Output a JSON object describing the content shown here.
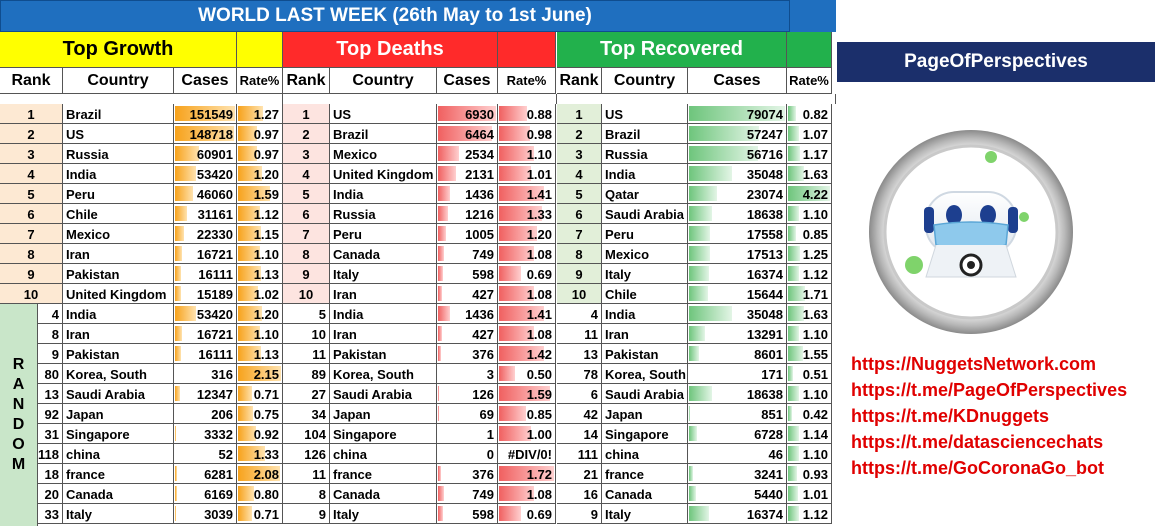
{
  "title": "WORLD LAST WEEK (26th May to 1st June)",
  "brand": "PageOfPerspectives",
  "links": [
    "https://NuggetsNetwork.com",
    "https://t.me/PageOfPerspectives",
    "https://t.me/KDnuggets",
    "https://t.me/datasciencechats",
    "https://t.me/GoCoronaGo_bot"
  ],
  "random_label": [
    "R",
    "A",
    "N",
    "D",
    "O",
    "M"
  ],
  "colors": {
    "growth": "#ffff00",
    "deaths": "#ff2a2a",
    "recovered": "#22b14c",
    "title": "#1f6fbf",
    "banner": "#1b2f6b"
  },
  "sections": [
    {
      "key": "growth",
      "title": "Top Growth",
      "headers": [
        "Rank",
        "Country",
        "Cases",
        "Rate%"
      ],
      "top": [
        {
          "rank": "1",
          "country": "Brazil",
          "cases": "151549",
          "rate": "1.27"
        },
        {
          "rank": "2",
          "country": "US",
          "cases": "148718",
          "rate": "0.97"
        },
        {
          "rank": "3",
          "country": "Russia",
          "cases": "60901",
          "rate": "0.97"
        },
        {
          "rank": "4",
          "country": "India",
          "cases": "53420",
          "rate": "1.20"
        },
        {
          "rank": "5",
          "country": "Peru",
          "cases": "46060",
          "rate": "1.59"
        },
        {
          "rank": "6",
          "country": "Chile",
          "cases": "31161",
          "rate": "1.12"
        },
        {
          "rank": "7",
          "country": "Mexico",
          "cases": "22330",
          "rate": "1.15"
        },
        {
          "rank": "8",
          "country": "Iran",
          "cases": "16721",
          "rate": "1.10"
        },
        {
          "rank": "9",
          "country": "Pakistan",
          "cases": "16111",
          "rate": "1.13"
        },
        {
          "rank": "10",
          "country": "United Kingdom",
          "cases": "15189",
          "rate": "1.02"
        }
      ],
      "random": [
        {
          "rank": "4",
          "country": "India",
          "cases": "53420",
          "rate": "1.20"
        },
        {
          "rank": "8",
          "country": "Iran",
          "cases": "16721",
          "rate": "1.10"
        },
        {
          "rank": "9",
          "country": "Pakistan",
          "cases": "16111",
          "rate": "1.13"
        },
        {
          "rank": "80",
          "country": "Korea, South",
          "cases": "316",
          "rate": "2.15"
        },
        {
          "rank": "13",
          "country": "Saudi Arabia",
          "cases": "12347",
          "rate": "0.71"
        },
        {
          "rank": "92",
          "country": "Japan",
          "cases": "206",
          "rate": "0.75"
        },
        {
          "rank": "31",
          "country": "Singapore",
          "cases": "3332",
          "rate": "0.92"
        },
        {
          "rank": "118",
          "country": "china",
          "cases": "52",
          "rate": "1.33"
        },
        {
          "rank": "18",
          "country": "france",
          "cases": "6281",
          "rate": "2.08"
        },
        {
          "rank": "20",
          "country": "Canada",
          "cases": "6169",
          "rate": "0.80"
        },
        {
          "rank": "33",
          "country": "Italy",
          "cases": "3039",
          "rate": "0.71"
        }
      ]
    },
    {
      "key": "deaths",
      "title": "Top Deaths",
      "headers": [
        "Rank",
        "Country",
        "Cases",
        "Rate%"
      ],
      "top": [
        {
          "rank": "1",
          "country": "US",
          "cases": "6930",
          "rate": "0.88"
        },
        {
          "rank": "2",
          "country": "Brazil",
          "cases": "6464",
          "rate": "0.98"
        },
        {
          "rank": "3",
          "country": "Mexico",
          "cases": "2534",
          "rate": "1.10"
        },
        {
          "rank": "4",
          "country": "United Kingdom",
          "cases": "2131",
          "rate": "1.01"
        },
        {
          "rank": "5",
          "country": "India",
          "cases": "1436",
          "rate": "1.41"
        },
        {
          "rank": "6",
          "country": "Russia",
          "cases": "1216",
          "rate": "1.33"
        },
        {
          "rank": "7",
          "country": "Peru",
          "cases": "1005",
          "rate": "1.20"
        },
        {
          "rank": "8",
          "country": "Canada",
          "cases": "749",
          "rate": "1.08"
        },
        {
          "rank": "9",
          "country": "Italy",
          "cases": "598",
          "rate": "0.69"
        },
        {
          "rank": "10",
          "country": "Iran",
          "cases": "427",
          "rate": "1.08"
        }
      ],
      "random": [
        {
          "rank": "5",
          "country": "India",
          "cases": "1436",
          "rate": "1.41"
        },
        {
          "rank": "10",
          "country": "Iran",
          "cases": "427",
          "rate": "1.08"
        },
        {
          "rank": "11",
          "country": "Pakistan",
          "cases": "376",
          "rate": "1.42"
        },
        {
          "rank": "89",
          "country": "Korea, South",
          "cases": "3",
          "rate": "0.50"
        },
        {
          "rank": "27",
          "country": "Saudi Arabia",
          "cases": "126",
          "rate": "1.59"
        },
        {
          "rank": "34",
          "country": "Japan",
          "cases": "69",
          "rate": "0.85"
        },
        {
          "rank": "104",
          "country": "Singapore",
          "cases": "1",
          "rate": "1.00"
        },
        {
          "rank": "126",
          "country": "china",
          "cases": "0",
          "rate": "#DIV/0!"
        },
        {
          "rank": "11",
          "country": "france",
          "cases": "376",
          "rate": "1.72"
        },
        {
          "rank": "8",
          "country": "Canada",
          "cases": "749",
          "rate": "1.08"
        },
        {
          "rank": "9",
          "country": "Italy",
          "cases": "598",
          "rate": "0.69"
        }
      ]
    },
    {
      "key": "recovered",
      "title": "Top Recovered",
      "headers": [
        "Rank",
        "Country",
        "Cases",
        "Rate%"
      ],
      "top": [
        {
          "rank": "1",
          "country": "US",
          "cases": "79074",
          "rate": "0.82"
        },
        {
          "rank": "2",
          "country": "Brazil",
          "cases": "57247",
          "rate": "1.07"
        },
        {
          "rank": "3",
          "country": "Russia",
          "cases": "56716",
          "rate": "1.17"
        },
        {
          "rank": "4",
          "country": "India",
          "cases": "35048",
          "rate": "1.63"
        },
        {
          "rank": "5",
          "country": "Qatar",
          "cases": "23074",
          "rate": "4.22"
        },
        {
          "rank": "6",
          "country": "Saudi Arabia",
          "cases": "18638",
          "rate": "1.10"
        },
        {
          "rank": "7",
          "country": "Peru",
          "cases": "17558",
          "rate": "0.85"
        },
        {
          "rank": "8",
          "country": "Mexico",
          "cases": "17513",
          "rate": "1.25"
        },
        {
          "rank": "9",
          "country": "Italy",
          "cases": "16374",
          "rate": "1.12"
        },
        {
          "rank": "10",
          "country": "Chile",
          "cases": "15644",
          "rate": "1.71"
        }
      ],
      "random": [
        {
          "rank": "4",
          "country": "India",
          "cases": "35048",
          "rate": "1.63"
        },
        {
          "rank": "11",
          "country": "Iran",
          "cases": "13291",
          "rate": "1.10"
        },
        {
          "rank": "13",
          "country": "Pakistan",
          "cases": "8601",
          "rate": "1.55"
        },
        {
          "rank": "78",
          "country": "Korea, South",
          "cases": "171",
          "rate": "0.51"
        },
        {
          "rank": "6",
          "country": "Saudi Arabia",
          "cases": "18638",
          "rate": "1.10"
        },
        {
          "rank": "42",
          "country": "Japan",
          "cases": "851",
          "rate": "0.42"
        },
        {
          "rank": "14",
          "country": "Singapore",
          "cases": "6728",
          "rate": "1.14"
        },
        {
          "rank": "111",
          "country": "china",
          "cases": "46",
          "rate": "1.10"
        },
        {
          "rank": "21",
          "country": "france",
          "cases": "3241",
          "rate": "0.93"
        },
        {
          "rank": "16",
          "country": "Canada",
          "cases": "5440",
          "rate": "1.01"
        },
        {
          "rank": "9",
          "country": "Italy",
          "cases": "16374",
          "rate": "1.12"
        }
      ]
    }
  ]
}
